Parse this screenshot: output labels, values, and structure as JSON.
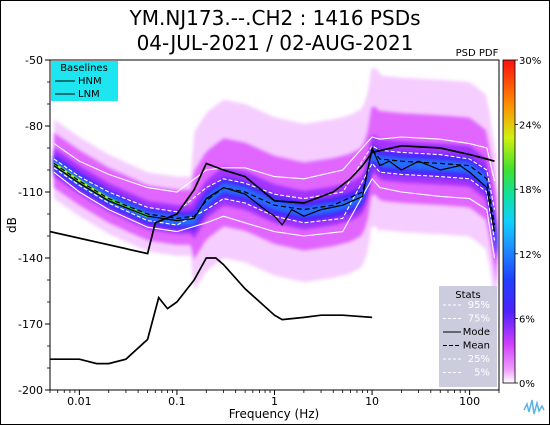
{
  "header": {
    "title_line1": "YM.NJ173.--.CH2 : 1416 PSDs",
    "title_line2": "04-JUL-2021 / 02-AUG-2021"
  },
  "colorbar": {
    "label": "PSD PDF",
    "ticks": [
      "30%",
      "24%",
      "18%",
      "12%",
      "6%",
      "0%"
    ],
    "tick_values": [
      30,
      24,
      18,
      12,
      6,
      0
    ]
  },
  "baselines_legend": {
    "title": "Baselines",
    "items": [
      "HNM",
      "LNM"
    ],
    "bg_color": "#1ee6f0"
  },
  "stats_legend": {
    "title": "Stats",
    "items": [
      {
        "label": "95%",
        "style": "white-dash"
      },
      {
        "label": "75%",
        "style": "white-dash"
      },
      {
        "label": "Mode",
        "style": "black-solid"
      },
      {
        "label": "Mean",
        "style": "black-dash"
      },
      {
        "label": "25%",
        "style": "white-dash"
      },
      {
        "label": "5%",
        "style": "white-dash"
      }
    ],
    "bg_color": "#c8c8dc"
  },
  "chart_data": {
    "type": "heatmap",
    "xlabel": "Frequency (Hz)",
    "ylabel": "dB",
    "xscale": "log",
    "xlim": [
      0.005,
      200
    ],
    "ylim": [
      -200,
      -50
    ],
    "xticks": [
      0.01,
      0.1,
      1,
      10,
      100
    ],
    "xtick_labels": [
      "0.01",
      "0.1",
      "1",
      "10",
      "100"
    ],
    "yticks": [
      -50,
      -80,
      -110,
      -140,
      -170,
      -200
    ],
    "ytick_labels": [
      "-50",
      "-80",
      "-110",
      "-140",
      "-170",
      "-200"
    ],
    "median_curve": {
      "x": [
        0.0055,
        0.01,
        0.02,
        0.05,
        0.1,
        0.15,
        0.2,
        0.3,
        0.5,
        1,
        2,
        4,
        6,
        8,
        9,
        10,
        12,
        20,
        50,
        100,
        150,
        170,
        190
      ],
      "y": [
        -97,
        -105,
        -113,
        -121,
        -123,
        -123,
        -114,
        -108,
        -110,
        -116,
        -119,
        -117,
        -115,
        -112,
        -105,
        -92,
        -96,
        -97,
        -98,
        -99,
        -105,
        -120,
        -135
      ]
    },
    "series": [
      {
        "name": "HNM",
        "x": [
          0.005,
          0.05,
          0.06,
          0.1,
          0.15,
          0.2,
          0.3,
          0.5,
          1,
          2,
          4,
          6,
          8,
          10,
          20,
          50,
          100,
          150,
          180
        ],
        "y": [
          -128,
          -138,
          -124,
          -120,
          -109,
          -97,
          -100,
          -103,
          -114,
          -115,
          -110,
          -104,
          -98,
          -92,
          -89,
          -90,
          -93,
          -95,
          -96
        ]
      },
      {
        "name": "LNM",
        "x": [
          0.005,
          0.01,
          0.015,
          0.02,
          0.03,
          0.05,
          0.065,
          0.08,
          0.1,
          0.15,
          0.2,
          0.25,
          0.3,
          0.5,
          1,
          1.2,
          2,
          3,
          5,
          10
        ],
        "y": [
          -186,
          -186,
          -188,
          -188,
          -186,
          -177,
          -158,
          -163,
          -160,
          -150,
          -140,
          -140,
          -143,
          -154,
          -166,
          -168,
          -167,
          -166,
          -166,
          -167
        ]
      },
      {
        "name": "Mode",
        "x": [
          0.0055,
          0.01,
          0.02,
          0.05,
          0.1,
          0.15,
          0.2,
          0.3,
          0.5,
          0.8,
          1,
          1.2,
          1.5,
          2,
          3,
          5,
          8,
          10,
          12,
          15,
          20,
          30,
          50,
          80,
          100,
          150,
          180
        ],
        "y": [
          -98,
          -106,
          -114,
          -121,
          -123,
          -122,
          -113,
          -108,
          -111,
          -118,
          -121,
          -125,
          -118,
          -121,
          -118,
          -116,
          -112,
          -90,
          -98,
          -96,
          -100,
          -96,
          -100,
          -98,
          -101,
          -108,
          -128
        ]
      },
      {
        "name": "Mean",
        "x": [
          0.0055,
          0.01,
          0.02,
          0.05,
          0.1,
          0.15,
          0.2,
          0.3,
          0.5,
          1,
          2,
          4,
          8,
          10,
          12,
          20,
          50,
          100,
          150,
          180
        ],
        "y": [
          -97,
          -105,
          -113,
          -120,
          -122,
          -121,
          -114,
          -108,
          -110,
          -116,
          -118,
          -116,
          -110,
          -91,
          -95,
          -96,
          -97,
          -98,
          -104,
          -125
        ]
      },
      {
        "name": "95%",
        "x": [
          0.0055,
          0.01,
          0.02,
          0.05,
          0.1,
          0.2,
          0.3,
          0.5,
          1,
          2,
          5,
          10,
          12,
          20,
          50,
          100,
          150,
          180
        ],
        "y": [
          -88,
          -96,
          -102,
          -108,
          -110,
          -100,
          -99,
          -99,
          -103,
          -104,
          -100,
          -85,
          -86,
          -85,
          -86,
          -88,
          -90,
          -105
        ]
      },
      {
        "name": "75%",
        "x": [
          0.0055,
          0.01,
          0.02,
          0.05,
          0.1,
          0.2,
          0.3,
          0.5,
          1,
          2,
          5,
          10,
          12,
          20,
          50,
          100,
          150,
          180
        ],
        "y": [
          -95,
          -103,
          -110,
          -117,
          -119,
          -108,
          -104,
          -106,
          -111,
          -113,
          -110,
          -89,
          -91,
          -92,
          -93,
          -95,
          -100,
          -118
        ]
      },
      {
        "name": "25%",
        "x": [
          0.0055,
          0.01,
          0.02,
          0.05,
          0.1,
          0.2,
          0.3,
          0.5,
          1,
          2,
          5,
          10,
          12,
          20,
          50,
          100,
          150,
          180
        ],
        "y": [
          -99,
          -107,
          -115,
          -123,
          -125,
          -118,
          -113,
          -115,
          -121,
          -124,
          -122,
          -97,
          -101,
          -102,
          -103,
          -104,
          -110,
          -132
        ]
      },
      {
        "name": "5%",
        "x": [
          0.0055,
          0.01,
          0.02,
          0.05,
          0.1,
          0.2,
          0.3,
          0.5,
          1,
          2,
          5,
          10,
          12,
          20,
          50,
          100,
          150,
          180
        ],
        "y": [
          -101,
          -110,
          -118,
          -126,
          -128,
          -124,
          -121,
          -124,
          -128,
          -130,
          -128,
          -104,
          -108,
          -110,
          -112,
          -113,
          -118,
          -140
        ]
      }
    ]
  }
}
